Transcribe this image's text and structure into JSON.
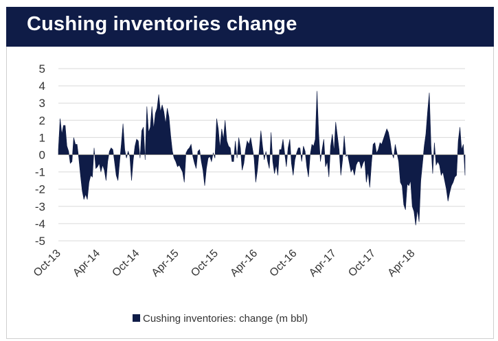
{
  "header": {
    "title": "Cushing inventories change"
  },
  "colors": {
    "header_bg": "#0f1c47",
    "series": "#0f1c47",
    "grid": "#d9d9d9"
  },
  "chart_data": {
    "type": "area",
    "title": "Cushing inventories change",
    "ylabel": "",
    "xlabel": "",
    "unit": "m bbl",
    "ylim": [
      -5,
      5
    ],
    "yticks": [
      5,
      4,
      3,
      2,
      1,
      0,
      -1,
      -2,
      -3,
      -4,
      -5
    ],
    "xticks": [
      "Oct-13",
      "Apr-14",
      "Oct-14",
      "Apr-15",
      "Oct-15",
      "Apr-16",
      "Oct-16",
      "Apr-17",
      "Oct-17",
      "Apr-18"
    ],
    "x_start": "2013-10",
    "x_end": "2018-12",
    "grid": true,
    "legend_position": "bottom",
    "series": [
      {
        "name": "Cushing inventories: change (m bbl)",
        "frequency": "weekly",
        "values": [
          0.3,
          2.1,
          1.2,
          1.7,
          1.7,
          0.5,
          0.2,
          -0.5,
          -0.4,
          1.0,
          0.6,
          0.6,
          -0.2,
          -1.2,
          -2.1,
          -2.6,
          -2.3,
          -2.6,
          -1.6,
          -1.2,
          -1.3,
          0.4,
          -0.8,
          -0.7,
          -0.5,
          -1.0,
          -0.6,
          -0.9,
          -1.5,
          -0.4,
          0.2,
          0.4,
          0.3,
          -0.4,
          -1.2,
          -1.5,
          -0.4,
          0.6,
          1.8,
          0.3,
          -0.2,
          0.2,
          -0.1,
          -1.5,
          -0.3,
          0.5,
          0.9,
          0.8,
          -0.2,
          1.4,
          1.6,
          -0.3,
          2.8,
          1.3,
          1.6,
          2.8,
          1.5,
          2.4,
          2.7,
          3.5,
          2.5,
          2.9,
          2.5,
          1.8,
          2.7,
          2.2,
          1.1,
          0.2,
          -0.2,
          -0.4,
          -0.7,
          -0.6,
          -0.8,
          -1.0,
          -1.6,
          0.1,
          0.3,
          0.4,
          0.6,
          -0.1,
          -0.5,
          -0.8,
          0.2,
          0.3,
          -0.4,
          -0.9,
          -1.8,
          -0.8,
          -0.2,
          -0.1,
          -0.4,
          0.1,
          -0.2,
          2.1,
          1.5,
          0.4,
          1.5,
          0.9,
          2.0,
          0.8,
          0.5,
          0.4,
          -0.4,
          -0.4,
          0.8,
          -0.2,
          1.0,
          0.4,
          -0.9,
          -0.5,
          0.3,
          0.8,
          0.6,
          1.0,
          0.4,
          -0.2,
          -1.6,
          -0.9,
          0.2,
          1.4,
          0.5,
          -0.3,
          0.2,
          -0.4,
          -0.8,
          1.3,
          -0.4,
          -1.1,
          -0.6,
          -1.2,
          0.3,
          0.3,
          0.9,
          0.1,
          -0.7,
          0.4,
          0.9,
          -0.5,
          -1.2,
          -0.3,
          0.1,
          0.4,
          0.4,
          -0.4,
          0.5,
          0.2,
          -0.7,
          -1.3,
          0.0,
          0.6,
          0.5,
          0.9,
          3.7,
          1.2,
          -0.4,
          0.3,
          0.9,
          -0.7,
          -0.4,
          -1.3,
          0.5,
          1.2,
          0.2,
          1.9,
          1.1,
          0.3,
          -1.2,
          -0.3,
          1.1,
          -0.1,
          0.0,
          -0.5,
          -1.0,
          -0.8,
          -1.2,
          -0.6,
          -0.4,
          -0.4,
          -0.8,
          -0.5,
          -0.3,
          -1.6,
          -1.0,
          -1.9,
          -0.5,
          0.6,
          0.7,
          0.1,
          0.3,
          0.7,
          0.6,
          0.9,
          1.2,
          1.5,
          1.3,
          0.8,
          0.1,
          -0.2,
          0.6,
          0.1,
          -0.4,
          -1.6,
          -1.8,
          -2.9,
          -3.2,
          -1.7,
          -1.8,
          -1.5,
          -3.0,
          -3.3,
          -4.1,
          -3.2,
          -3.9,
          -1.5,
          -0.5,
          0.5,
          1.2,
          2.5,
          3.6,
          0.5,
          -1.1,
          0.7,
          -0.6,
          -0.4,
          -0.6,
          -1.2,
          -1.0,
          -1.5,
          -2.0,
          -2.7,
          -2.2,
          -1.8,
          -1.6,
          -1.3,
          -1.2,
          0.8,
          1.6,
          0.3,
          0.6,
          -1.2
        ]
      }
    ]
  }
}
